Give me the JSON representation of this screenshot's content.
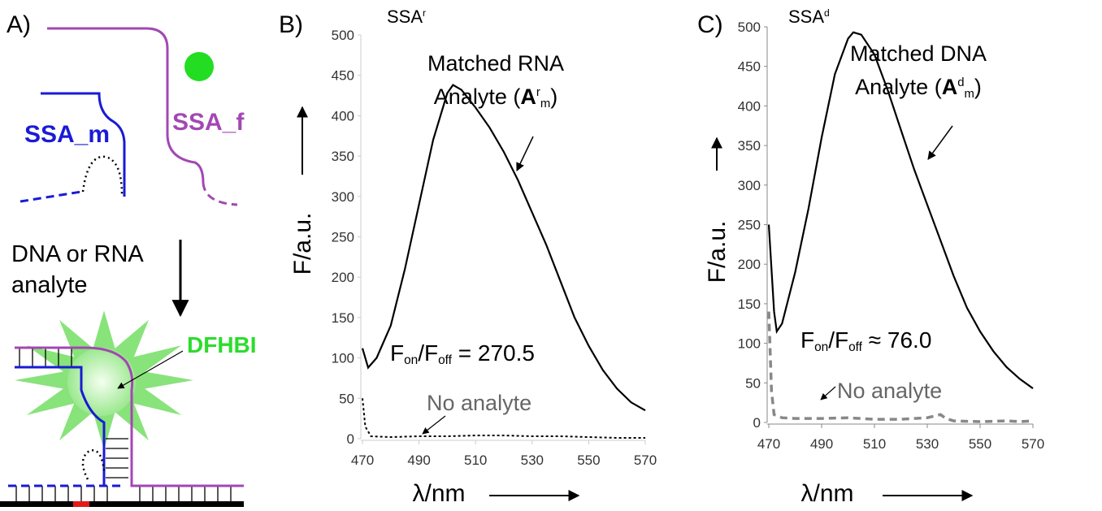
{
  "diagram": {
    "label": "A)",
    "strand_m": "SSA_m",
    "strand_f": "SSA_f",
    "analyte_line1": "DNA or RNA",
    "analyte_line2": "analyte",
    "dye": "DFHBI"
  },
  "chart_data": [
    {
      "type": "line",
      "panel_label": "B)",
      "title": [
        {
          "text": "SSA"
        },
        {
          "text": "r",
          "sup": true
        }
      ],
      "x_label": "λ/nm",
      "y_label": "F/a.u.",
      "xlim": [
        470,
        570
      ],
      "xticks": [
        470,
        490,
        510,
        530,
        550,
        570
      ],
      "ylim": [
        0,
        500
      ],
      "yticks": [
        0,
        50,
        100,
        150,
        200,
        250,
        300,
        350,
        400,
        450,
        500
      ],
      "series": [
        {
          "color": "#000000",
          "line_style": "solid",
          "x": [
            470,
            472,
            475,
            480,
            485,
            490,
            495,
            500,
            502,
            505,
            510,
            515,
            520,
            525,
            530,
            535,
            540,
            545,
            550,
            555,
            560,
            565,
            570
          ],
          "values": [
            112,
            88,
            100,
            140,
            210,
            290,
            370,
            428,
            438,
            432,
            410,
            385,
            355,
            320,
            280,
            240,
            195,
            150,
            115,
            85,
            62,
            45,
            35
          ]
        },
        {
          "color": "#000000",
          "line_style": "dashed",
          "x": [
            470,
            471,
            473,
            480,
            490,
            500,
            510,
            520,
            530,
            540,
            550,
            560,
            570
          ],
          "values": [
            50,
            15,
            3,
            2,
            3,
            3,
            4,
            4,
            3,
            3,
            2,
            1,
            1
          ]
        }
      ],
      "annotations": {
        "matched": [
          [
            {
              "text": "Matched RNA"
            }
          ],
          [
            {
              "text": "Analyte ("
            },
            {
              "text": "A",
              "bold": true
            },
            {
              "text": "r",
              "sup": true
            },
            {
              "text": "m",
              "sub": true
            },
            {
              "text": ")"
            }
          ]
        ],
        "ratio": [
          {
            "text": "F"
          },
          {
            "text": "on",
            "sub": true
          },
          {
            "text": "/F"
          },
          {
            "text": "off",
            "sub": true
          },
          {
            "text": " = 270.5"
          }
        ],
        "no_analyte": "No analyte"
      }
    },
    {
      "type": "line",
      "panel_label": "C)",
      "title": [
        {
          "text": "SSA"
        },
        {
          "text": "d",
          "sup": true
        }
      ],
      "x_label": "λ/nm",
      "y_label": "F/a.u.",
      "xlim": [
        470,
        570
      ],
      "xticks": [
        470,
        490,
        510,
        530,
        550,
        570
      ],
      "ylim": [
        0,
        500
      ],
      "yticks": [
        0,
        50,
        100,
        150,
        200,
        250,
        300,
        350,
        400,
        450,
        500
      ],
      "series": [
        {
          "color": "#000000",
          "line_style": "solid",
          "x": [
            470,
            472,
            473,
            475,
            480,
            485,
            490,
            495,
            500,
            502,
            505,
            510,
            515,
            520,
            525,
            530,
            535,
            540,
            545,
            550,
            555,
            560,
            565,
            570
          ],
          "values": [
            250,
            140,
            115,
            125,
            190,
            270,
            360,
            440,
            485,
            493,
            490,
            465,
            420,
            370,
            320,
            275,
            230,
            185,
            145,
            115,
            90,
            70,
            55,
            43
          ]
        },
        {
          "color": "#888888",
          "line_style": "dashed",
          "x": [
            470,
            471,
            472,
            475,
            480,
            490,
            500,
            510,
            520,
            530,
            535,
            537,
            540,
            550,
            560,
            565,
            570
          ],
          "values": [
            140,
            40,
            10,
            6,
            5,
            5,
            6,
            4,
            4,
            6,
            10,
            5,
            2,
            1,
            2,
            1,
            2
          ]
        }
      ],
      "annotations": {
        "matched": [
          [
            {
              "text": "Matched DNA"
            }
          ],
          [
            {
              "text": "Analyte ("
            },
            {
              "text": "A",
              "bold": true
            },
            {
              "text": "d",
              "sup": true
            },
            {
              "text": "m",
              "sub": true
            },
            {
              "text": ")"
            }
          ]
        ],
        "ratio": [
          {
            "text": "F"
          },
          {
            "text": "on",
            "sub": true
          },
          {
            "text": "/F"
          },
          {
            "text": "off",
            "sub": true
          },
          {
            "text": " ≈ 76.0"
          }
        ],
        "no_analyte": "No analyte"
      }
    }
  ]
}
